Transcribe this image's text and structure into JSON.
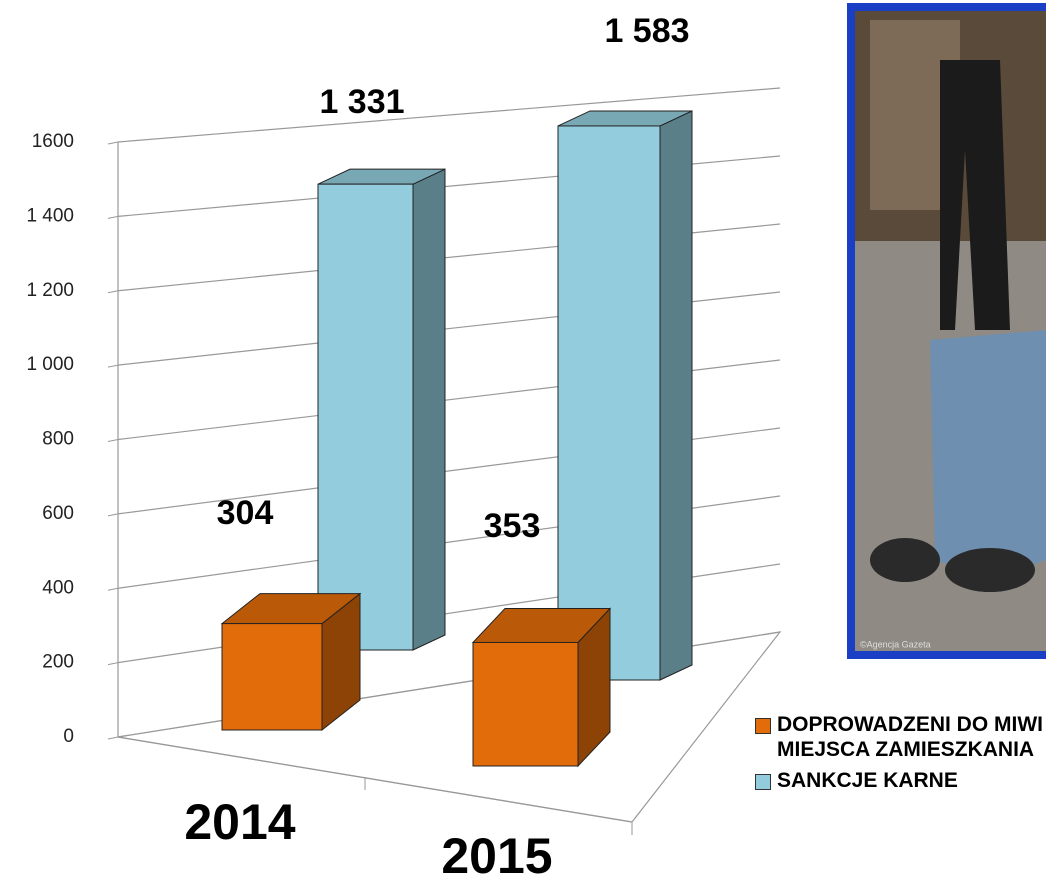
{
  "chart_data": {
    "type": "bar3d",
    "categories": [
      "2014",
      "2015"
    ],
    "series": [
      {
        "name": "DOPROWADZENI DO MIWI MIEJSCA ZAMIESZKANIA",
        "color": "#e36c0a",
        "values": [
          304,
          353
        ],
        "value_labels": [
          "304",
          "353"
        ]
      },
      {
        "name": "SANKCJE KARNE",
        "color": "#93cddd",
        "values": [
          1331,
          1583
        ],
        "value_labels": [
          "1 331",
          "1 583"
        ]
      }
    ],
    "ylim": [
      0,
      1600
    ],
    "yticks": [
      0,
      200,
      400,
      600,
      800,
      {
        "value": 1000,
        "label": "1 000"
      },
      {
        "value": 1200,
        "label": "1 200"
      },
      {
        "value": 1400,
        "label": "1 400"
      },
      1600
    ],
    "grid": true,
    "legend": "bottom-right"
  },
  "photo": {
    "credit": "©Agencja Gazeta"
  }
}
